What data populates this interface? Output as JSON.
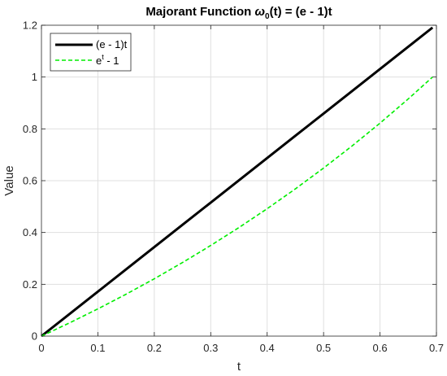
{
  "chart_data": {
    "type": "line",
    "title": {
      "prefix": "Majorant Function ",
      "symbol": "ω",
      "subscript": "0",
      "suffix": "(t) = (e - 1)t"
    },
    "xlabel": "t",
    "ylabel": "Value",
    "xlim": [
      0,
      0.7
    ],
    "ylim": [
      0,
      1.2
    ],
    "xticks": [
      0,
      0.1,
      0.2,
      0.3,
      0.4,
      0.5,
      0.6,
      0.7
    ],
    "yticks": [
      0,
      0.2,
      0.4,
      0.6,
      0.8,
      1,
      1.2
    ],
    "xtick_labels": [
      "0",
      "0.1",
      "0.2",
      "0.3",
      "0.4",
      "0.5",
      "0.6",
      "0.7"
    ],
    "ytick_labels": [
      "0",
      "0.2",
      "0.4",
      "0.6",
      "0.8",
      "1",
      "1.2"
    ],
    "grid": true,
    "legend_position": "top-left",
    "series": [
      {
        "legend": {
          "base": "(e - 1)t",
          "sup": "",
          "rest": ""
        },
        "color": "#000000",
        "style": "solid",
        "x": [
          0,
          0.05,
          0.1,
          0.15,
          0.2,
          0.25,
          0.3,
          0.35,
          0.4,
          0.45,
          0.5,
          0.55,
          0.6,
          0.65,
          0.6931
        ],
        "y": [
          0,
          0.0859,
          0.1718,
          0.2577,
          0.3437,
          0.4296,
          0.5155,
          0.6014,
          0.6873,
          0.7732,
          0.8591,
          0.945,
          1.031,
          1.1169,
          1.191
        ]
      },
      {
        "legend": {
          "base": "e",
          "sup": "t",
          "rest": " - 1"
        },
        "color": "#00ee00",
        "style": "dashed",
        "x": [
          0,
          0.05,
          0.1,
          0.15,
          0.2,
          0.25,
          0.3,
          0.35,
          0.4,
          0.45,
          0.5,
          0.55,
          0.6,
          0.65,
          0.6931
        ],
        "y": [
          0,
          0.0513,
          0.1052,
          0.1618,
          0.2214,
          0.284,
          0.3499,
          0.4191,
          0.4918,
          0.5683,
          0.6487,
          0.7333,
          0.8221,
          0.9155,
          1.0
        ]
      }
    ]
  }
}
